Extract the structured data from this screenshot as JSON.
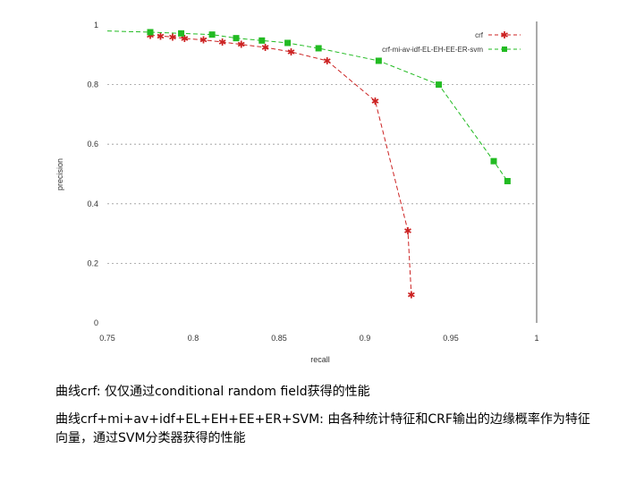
{
  "chart_data": {
    "type": "line",
    "xlabel": "recall",
    "ylabel": "precision",
    "xlim": [
      0.75,
      1.0
    ],
    "ylim": [
      0,
      1
    ],
    "x_ticks": [
      "0.75",
      "0.8",
      "0.85",
      "0.9",
      "0.95",
      "1"
    ],
    "y_ticks": [
      "0",
      "0.2",
      "0.4",
      "0.6",
      "0.8",
      "1"
    ],
    "grid": "horizontal dashed",
    "legend_position": "top-right",
    "series": [
      {
        "name": "crf",
        "color": "#cc2222",
        "marker": "star",
        "style": "dashed",
        "points": [
          [
            0.775,
            0.966
          ],
          [
            0.781,
            0.963
          ],
          [
            0.788,
            0.96
          ],
          [
            0.795,
            0.955
          ],
          [
            0.806,
            0.95
          ],
          [
            0.817,
            0.943
          ],
          [
            0.828,
            0.935
          ],
          [
            0.842,
            0.925
          ],
          [
            0.857,
            0.91
          ],
          [
            0.878,
            0.88
          ],
          [
            0.906,
            0.745
          ],
          [
            0.925,
            0.31
          ],
          [
            0.927,
            0.095
          ]
        ]
      },
      {
        "name": "crf-mi-av-idf-EL-EH-EE-ER-svm",
        "color": "#22bb22",
        "marker": "square",
        "style": "dashed",
        "points": [
          [
            0.75,
            0.98
          ],
          [
            0.775,
            0.976
          ],
          [
            0.793,
            0.972
          ],
          [
            0.811,
            0.968
          ],
          [
            0.825,
            0.956
          ],
          [
            0.84,
            0.948
          ],
          [
            0.855,
            0.94
          ],
          [
            0.873,
            0.922
          ],
          [
            0.908,
            0.88
          ],
          [
            0.943,
            0.8
          ],
          [
            0.975,
            0.543
          ],
          [
            0.983,
            0.476
          ]
        ]
      }
    ]
  },
  "captions": {
    "line1": "曲线crf: 仅仅通过conditional random field获得的性能",
    "line2": "曲线crf+mi+av+idf+EL+EH+EE+ER+SVM: 由各种统计特征和CRF输出的边缘概率作为特征向量，通过SVM分类器获得的性能"
  }
}
